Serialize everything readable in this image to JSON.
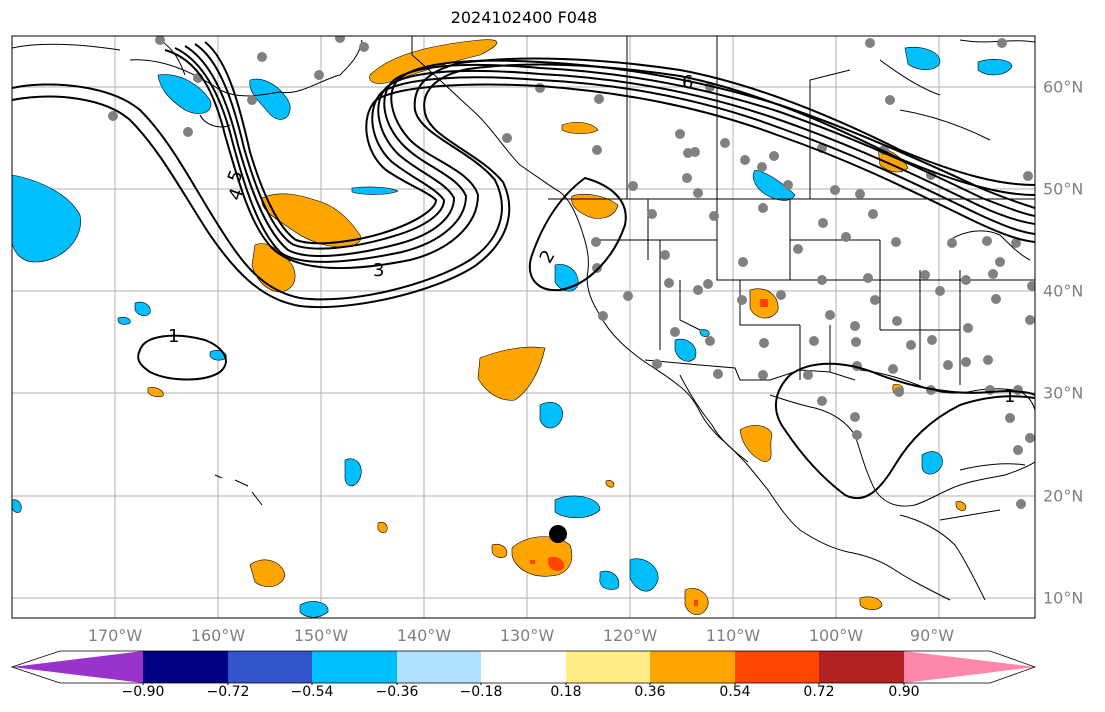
{
  "title": "2024102400 F048",
  "lon_labels": [
    "170°W",
    "160°W",
    "150°W",
    "140°W",
    "130°W",
    "120°W",
    "110°W",
    "100°W",
    "90°W"
  ],
  "lat_labels": [
    "60°N",
    "50°N",
    "40°N",
    "30°N",
    "20°N",
    "10°N"
  ],
  "contour_labels": [
    "5",
    "4",
    "3",
    "2",
    "1",
    "6",
    "1"
  ],
  "colorbar": {
    "tick_labels": [
      "−0.90",
      "−0.72",
      "−0.54",
      "−0.36",
      "−0.18",
      "0.18",
      "0.36",
      "0.54",
      "0.72",
      "0.90"
    ],
    "colors": [
      "#9933cc",
      "#000080",
      "#3355cc",
      "#00bfff",
      "#b0e2ff",
      "#ffffff",
      "#ffee88",
      "#ffa500",
      "#ff4500",
      "#b22222",
      "#ff88aa"
    ]
  },
  "colors": {
    "positive_fill": "#ffa500",
    "strong_positive_fill": "#ff4500",
    "negative_fill": "#00bfff",
    "contour": "#000000",
    "stations": "#808080",
    "grid": "#b0b0b0"
  }
}
